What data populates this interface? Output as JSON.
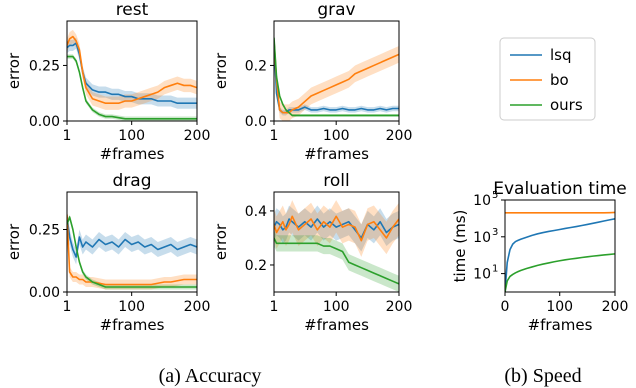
{
  "series_names": [
    "lsq",
    "bo",
    "ours"
  ],
  "colors": {
    "lsq": "#1f77b4",
    "bo": "#ff7f0e",
    "ours": "#2ca02c"
  },
  "captions": {
    "a": "(a)  Accuracy",
    "b": "(b)  Speed"
  },
  "chart_data": [
    {
      "type": "line",
      "title": "rest",
      "xlabel": "#frames",
      "ylabel": "error",
      "xlim": [
        1,
        200
      ],
      "ylim": [
        0,
        0.45
      ],
      "xticks": [
        "1",
        "100",
        "200"
      ],
      "yticks": [
        "0.00",
        "0.25"
      ],
      "yscale": "linear",
      "x": [
        1,
        5,
        10,
        15,
        20,
        25,
        30,
        40,
        50,
        60,
        70,
        80,
        90,
        100,
        110,
        120,
        130,
        140,
        150,
        160,
        170,
        180,
        190,
        200
      ],
      "series": [
        {
          "name": "lsq",
          "values": [
            0.33,
            0.34,
            0.34,
            0.35,
            0.3,
            0.22,
            0.17,
            0.14,
            0.13,
            0.13,
            0.12,
            0.12,
            0.11,
            0.11,
            0.1,
            0.1,
            0.1,
            0.09,
            0.09,
            0.09,
            0.08,
            0.08,
            0.08,
            0.08
          ],
          "band": 0.025
        },
        {
          "name": "bo",
          "values": [
            0.34,
            0.37,
            0.38,
            0.36,
            0.32,
            0.22,
            0.15,
            0.1,
            0.09,
            0.08,
            0.08,
            0.08,
            0.09,
            0.09,
            0.1,
            0.11,
            0.12,
            0.13,
            0.15,
            0.16,
            0.17,
            0.16,
            0.16,
            0.15
          ],
          "band": 0.03
        },
        {
          "name": "ours",
          "values": [
            0.29,
            0.29,
            0.29,
            0.27,
            0.22,
            0.15,
            0.09,
            0.05,
            0.03,
            0.02,
            0.02,
            0.015,
            0.01,
            0.01,
            0.01,
            0.01,
            0.01,
            0.01,
            0.01,
            0.01,
            0.01,
            0.01,
            0.01,
            0.01
          ],
          "band": 0.01
        }
      ]
    },
    {
      "type": "line",
      "title": "grav",
      "xlabel": "#frames",
      "ylabel": "error",
      "xlim": [
        1,
        200
      ],
      "ylim": [
        0,
        0.36
      ],
      "xticks": [
        "1",
        "100",
        "200"
      ],
      "yticks": [
        "0.0",
        "0.2"
      ],
      "yscale": "linear",
      "x": [
        1,
        5,
        10,
        15,
        20,
        25,
        30,
        40,
        50,
        60,
        70,
        80,
        90,
        100,
        110,
        120,
        130,
        140,
        150,
        160,
        170,
        180,
        190,
        200
      ],
      "series": [
        {
          "name": "lsq",
          "values": [
            0.29,
            0.1,
            0.04,
            0.03,
            0.03,
            0.04,
            0.04,
            0.04,
            0.05,
            0.04,
            0.04,
            0.045,
            0.04,
            0.04,
            0.045,
            0.04,
            0.04,
            0.045,
            0.04,
            0.04,
            0.045,
            0.04,
            0.045,
            0.045
          ],
          "band": 0.01
        },
        {
          "name": "bo",
          "values": [
            0.29,
            0.15,
            0.04,
            0.03,
            0.03,
            0.03,
            0.04,
            0.05,
            0.07,
            0.09,
            0.1,
            0.11,
            0.12,
            0.13,
            0.14,
            0.15,
            0.17,
            0.18,
            0.19,
            0.2,
            0.21,
            0.22,
            0.23,
            0.24
          ],
          "band": 0.03
        },
        {
          "name": "ours",
          "values": [
            0.3,
            0.16,
            0.09,
            0.06,
            0.04,
            0.03,
            0.02,
            0.02,
            0.02,
            0.02,
            0.02,
            0.02,
            0.02,
            0.02,
            0.02,
            0.02,
            0.02,
            0.02,
            0.02,
            0.02,
            0.02,
            0.02,
            0.02,
            0.02
          ],
          "band": 0.005
        }
      ]
    },
    {
      "type": "line",
      "title": "drag",
      "xlabel": "#frames",
      "ylabel": "error",
      "xlim": [
        1,
        200
      ],
      "ylim": [
        0,
        0.4
      ],
      "xticks": [
        "1",
        "100",
        "200"
      ],
      "yticks": [
        "0.00",
        "0.25"
      ],
      "yscale": "linear",
      "x": [
        1,
        5,
        10,
        15,
        20,
        25,
        30,
        40,
        50,
        60,
        70,
        80,
        90,
        100,
        110,
        120,
        130,
        140,
        150,
        160,
        170,
        180,
        190,
        200
      ],
      "series": [
        {
          "name": "lsq",
          "values": [
            0.3,
            0.22,
            0.17,
            0.14,
            0.22,
            0.18,
            0.2,
            0.18,
            0.21,
            0.19,
            0.2,
            0.18,
            0.21,
            0.19,
            0.2,
            0.18,
            0.19,
            0.17,
            0.18,
            0.19,
            0.17,
            0.18,
            0.19,
            0.18
          ],
          "band": 0.03
        },
        {
          "name": "bo",
          "values": [
            0.31,
            0.08,
            0.06,
            0.06,
            0.05,
            0.05,
            0.04,
            0.04,
            0.035,
            0.03,
            0.03,
            0.03,
            0.03,
            0.03,
            0.03,
            0.03,
            0.03,
            0.035,
            0.04,
            0.04,
            0.045,
            0.05,
            0.05,
            0.05
          ],
          "band": 0.02
        },
        {
          "name": "ours",
          "values": [
            0.27,
            0.3,
            0.25,
            0.18,
            0.12,
            0.08,
            0.06,
            0.04,
            0.03,
            0.02,
            0.02,
            0.02,
            0.02,
            0.02,
            0.02,
            0.02,
            0.02,
            0.02,
            0.02,
            0.02,
            0.02,
            0.02,
            0.02,
            0.02
          ],
          "band": 0.01
        }
      ]
    },
    {
      "type": "line",
      "title": "roll",
      "xlabel": "#frames",
      "ylabel": "error",
      "xlim": [
        1,
        200
      ],
      "ylim": [
        0.1,
        0.47
      ],
      "xticks": [
        "1",
        "100",
        "200"
      ],
      "yticks": [
        "0.2",
        "0.4"
      ],
      "yscale": "linear",
      "x": [
        1,
        5,
        10,
        15,
        20,
        25,
        30,
        40,
        50,
        60,
        70,
        80,
        90,
        100,
        110,
        120,
        130,
        140,
        150,
        160,
        170,
        180,
        190,
        200
      ],
      "series": [
        {
          "name": "lsq",
          "values": [
            0.34,
            0.36,
            0.35,
            0.33,
            0.34,
            0.37,
            0.36,
            0.34,
            0.36,
            0.34,
            0.37,
            0.34,
            0.36,
            0.34,
            0.35,
            0.36,
            0.33,
            0.3,
            0.35,
            0.33,
            0.36,
            0.32,
            0.34,
            0.35
          ],
          "band": 0.05
        },
        {
          "name": "bo",
          "values": [
            0.35,
            0.32,
            0.34,
            0.36,
            0.33,
            0.35,
            0.38,
            0.33,
            0.35,
            0.37,
            0.33,
            0.36,
            0.34,
            0.38,
            0.34,
            0.35,
            0.34,
            0.29,
            0.35,
            0.36,
            0.33,
            0.3,
            0.34,
            0.37
          ],
          "band": 0.06
        },
        {
          "name": "ours",
          "values": [
            0.3,
            0.28,
            0.28,
            0.28,
            0.28,
            0.28,
            0.28,
            0.28,
            0.28,
            0.28,
            0.28,
            0.27,
            0.27,
            0.26,
            0.25,
            0.21,
            0.2,
            0.19,
            0.18,
            0.17,
            0.16,
            0.15,
            0.14,
            0.13
          ],
          "band": 0.03
        }
      ]
    },
    {
      "type": "line",
      "title": "Evaluation time",
      "xlabel": "#frames",
      "ylabel": "time (ms)",
      "xlim": [
        1,
        200
      ],
      "ylim": [
        1,
        100000
      ],
      "xticks": [
        "0",
        "100",
        "200"
      ],
      "yticks": [
        "10",
        "10",
        "10"
      ],
      "ytick_exponents": [
        "1",
        "3",
        "5"
      ],
      "yscale": "log",
      "x": [
        1,
        5,
        10,
        15,
        20,
        25,
        30,
        40,
        50,
        60,
        70,
        80,
        90,
        100,
        110,
        120,
        130,
        140,
        150,
        160,
        170,
        180,
        190,
        200
      ],
      "series": [
        {
          "name": "lsq",
          "values": [
            1,
            40,
            200,
            400,
            550,
            650,
            750,
            950,
            1200,
            1450,
            1700,
            1950,
            2200,
            2500,
            2850,
            3200,
            3600,
            4100,
            4700,
            5400,
            6200,
            7200,
            8300,
            9500
          ]
        },
        {
          "name": "bo",
          "values": [
            20000,
            20000,
            20000,
            20000,
            20000,
            20000,
            20000,
            20000,
            20000,
            20000,
            20000,
            20000,
            20000,
            20000,
            20000,
            20000,
            20000,
            20000,
            20000,
            20000,
            20000,
            20000,
            20500,
            21000
          ]
        },
        {
          "name": "ours",
          "values": [
            1,
            4,
            7,
            9,
            11,
            13,
            15,
            19,
            23,
            28,
            33,
            38,
            44,
            50,
            56,
            62,
            68,
            75,
            82,
            89,
            96,
            103,
            110,
            118
          ]
        }
      ]
    }
  ]
}
